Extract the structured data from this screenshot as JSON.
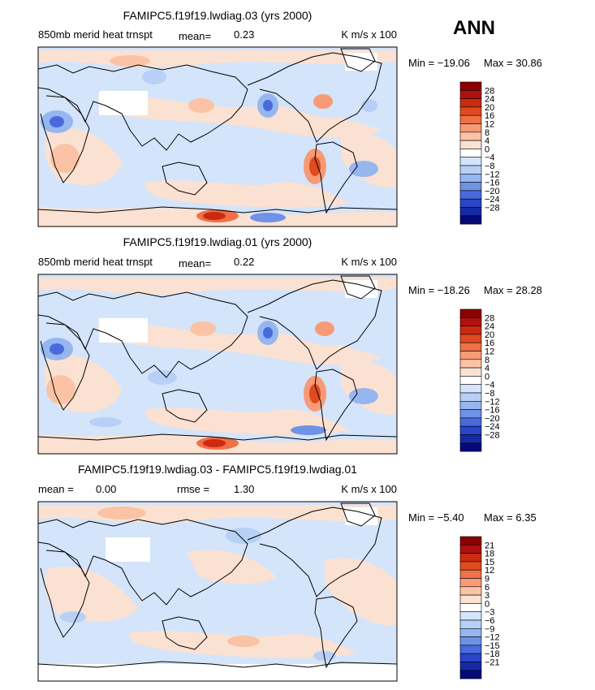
{
  "season": "ANN",
  "chart_data": [
    {
      "type": "heatmap",
      "title": "FAMIPC5.f19f19.lwdiag.03 (yrs 2000)",
      "left_label": "850mb merid heat trnspt",
      "mean_text": "mean=",
      "mean_value": "0.23",
      "units": "K m/s x 100",
      "min_text": "Min = −19.06",
      "max_text": "Max = 30.86",
      "min": -19.06,
      "max": 30.86,
      "colorbar_labels": [
        "28",
        "24",
        "20",
        "16",
        "12",
        "8",
        "4",
        "0",
        "−4",
        "−8",
        "−12",
        "−16",
        "−20",
        "−24",
        "−28"
      ]
    },
    {
      "type": "heatmap",
      "title": "FAMIPC5.f19f19.lwdiag.01 (yrs 2000)",
      "left_label": "850mb merid heat trnspt",
      "mean_text": "mean=",
      "mean_value": "0.22",
      "units": "K m/s x 100",
      "min_text": "Min = −18.26",
      "max_text": "Max = 28.28",
      "min": -18.26,
      "max": 28.28,
      "colorbar_labels": [
        "28",
        "24",
        "20",
        "16",
        "12",
        "8",
        "4",
        "0",
        "−4",
        "−8",
        "−12",
        "−16",
        "−20",
        "−24",
        "−28"
      ]
    },
    {
      "type": "heatmap",
      "title": "FAMIPC5.f19f19.lwdiag.03 - FAMIPC5.f19f19.lwdiag.01",
      "left_label": "mean =",
      "mean_value": "0.00",
      "rmse_text": "rmse =",
      "rmse_value": "1.30",
      "units": "K m/s x 100",
      "min_text": "Min = −5.40",
      "max_text": "Max = 6.35",
      "min": -5.4,
      "max": 6.35,
      "colorbar_labels": [
        "21",
        "18",
        "15",
        "12",
        "9",
        "6",
        "3",
        "0",
        "−3",
        "−6",
        "−9",
        "−12",
        "−15",
        "−18",
        "−21"
      ]
    }
  ],
  "colors": {
    "scale": [
      "#8b0000",
      "#b01010",
      "#cc2a10",
      "#e04a1e",
      "#f07048",
      "#f79a76",
      "#fbc3a6",
      "#fbe1d2",
      "#ffffff",
      "#d4e4fa",
      "#b8d0f6",
      "#96b6f0",
      "#6e92e6",
      "#4a6adc",
      "#2a45c8",
      "#162aa6",
      "#050a78"
    ],
    "ocean_pos": "#fbe1d2",
    "ocean_neg": "#d4e4fa"
  }
}
